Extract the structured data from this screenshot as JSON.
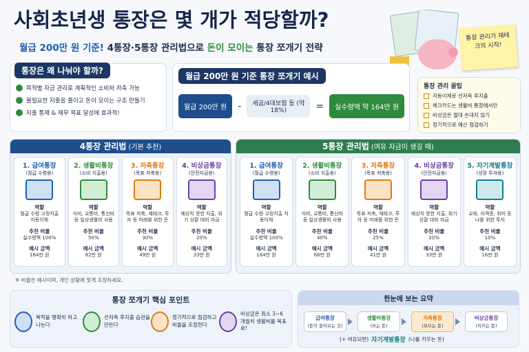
{
  "header": {
    "title": "사회초년생 통장은 몇 개가 적당할까?",
    "subtitle": [
      "월급 200만 원 기준!",
      " 4통장·5통장 관리법으로 ",
      "돈이 모이는",
      " 통장 쪼개기 전략"
    ],
    "note": "통장 관리가 재테크의 시작!"
  },
  "why": {
    "title": "통장은 왜 나눠야 할까?",
    "items": [
      "목적별 자금 관리로 계획적인 소비와 저축 가능",
      "불필요한 지출을 줄이고 돈이 모이는 구조 만들기",
      "지출 통제 & 재무 목표 달성에 효과적!"
    ]
  },
  "example": {
    "title": "월급 200만 원 기준 통장 쪼개기 예시",
    "salary": "월급 200만 원",
    "minus": "-",
    "deduction": "세금/4대보험 등 (약 18%)",
    "equals": "=",
    "net": "실수령액 약 164만 원"
  },
  "tips": {
    "title": "통장 관리 꿀팁",
    "items": [
      "자동이체로 선저축 후지출",
      "체크카드는 생활비 통장에서만",
      "비상금은 절대 손대지 않기",
      "정기적으로 예산 점검하기"
    ]
  },
  "plans": [
    {
      "title": "4통장 관리법",
      "subtitle": "(기본 추천)",
      "labels": {
        "role": "역할",
        "ratio": "추천 비율",
        "amount": "예시 금액"
      },
      "accounts": [
        {
          "name": "1. 급여통장",
          "purpose": "(월급 수령용)",
          "role": "월급 수령 고정지출 자동이체",
          "ratio": "실수령액 100%",
          "amount": "164만 원"
        },
        {
          "name": "2. 생활비통장",
          "purpose": "(소비 지출용)",
          "role": "식비, 교통비, 통신비 등 일상생활비 사용",
          "ratio": "50%",
          "amount": "82만 원"
        },
        {
          "name": "3. 저축통장",
          "purpose": "(목표 저축용)",
          "role": "목표 저축, 재테크, 투자 등 미래를 위한 돈",
          "ratio": "30%",
          "amount": "49만 원"
        },
        {
          "name": "4. 비상금통장",
          "purpose": "(안전자금용)",
          "role": "예상치 못한 지출, 위기 상황 대비 자금",
          "ratio": "20%",
          "amount": "33만 원"
        }
      ],
      "footnote": "※ 비율은 예시이며, 개인 상황에 맞게 조정하세요."
    },
    {
      "title": "5통장 관리법",
      "subtitle": "(여유 자금이 생길 때)",
      "labels": {
        "role": "역할",
        "ratio": "추천 비율",
        "amount": "예시 금액"
      },
      "accounts": [
        {
          "name": "1. 급여통장",
          "purpose": "(월급 수령용)",
          "role": "월급 수령 고정지출 자동이체",
          "ratio": "실수령액 100%",
          "amount": "164만 원"
        },
        {
          "name": "2. 생활비통장",
          "purpose": "(소비 지출용)",
          "role": "식비, 교통비, 통신비 등 일상생활비 사용",
          "ratio": "40%",
          "amount": "66만 원"
        },
        {
          "name": "3. 저축통장",
          "purpose": "(목표 저축용)",
          "role": "목표 저축, 재테크, 투자 등 미래를 위한 돈",
          "ratio": "25%",
          "amount": "41만 원"
        },
        {
          "name": "4. 비상금통장",
          "purpose": "(안전자금용)",
          "role": "예상치 못한 지출, 위기 상황 대비 자금",
          "ratio": "20%",
          "amount": "33만 원"
        },
        {
          "name": "5. 자기계발통장",
          "purpose": "(성장 투자용)",
          "role": "교육, 자격증, 취미 등 나를 위한 투자",
          "ratio": "10%",
          "amount": "16만 원"
        }
      ]
    }
  ],
  "points": {
    "title": "통장 쪼개기 핵심 포인트",
    "items": [
      "목적을 명확히 하고 나눈다",
      "선저축 후지출 습관을 만든다",
      "정기적으로 점검하고 비율을 조정한다",
      "비상금은 최소 3~6개월치 생활비를 목표로!"
    ]
  },
  "summary": {
    "title": "한눈에 보는 요약",
    "steps": [
      {
        "name": "급여통장",
        "desc": "(돈이 들어오는 곳)"
      },
      {
        "name": "생활비통장",
        "desc": "(쓰는 돈)"
      },
      {
        "name": "저축통장",
        "desc": "(모으는 돈)"
      },
      {
        "name": "비상금통장",
        "desc": "(지키는 돈)"
      }
    ],
    "extra": {
      "prefix": "(+ 여유되면)",
      "name": "자기계발통장",
      "desc": "(나를 키우는 돈)"
    }
  }
}
